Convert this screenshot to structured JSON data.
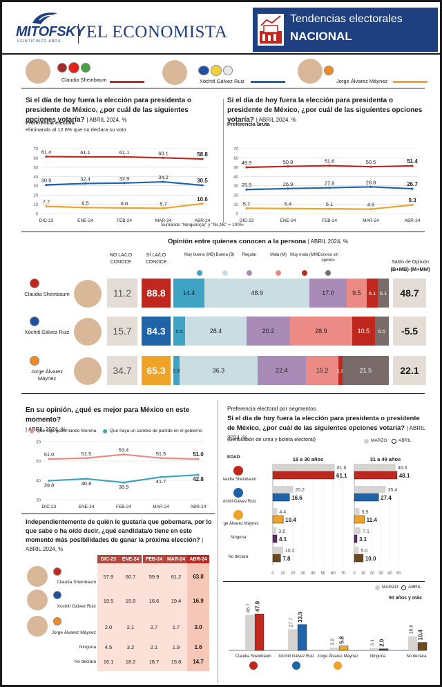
{
  "header": {
    "logo_left": "MITOFSKY",
    "logo_left_sub": "VEINTICINCO AÑOS",
    "logo_right": "EL ECONOMISTA",
    "title1": "Tendencias electorales",
    "title2": "NACIONAL"
  },
  "candidates": [
    {
      "name": "Claudia Sheinbaum",
      "color": "#c0281e"
    },
    {
      "name": "Xóchitl Gálvez Ruiz",
      "color": "#1f63a8"
    },
    {
      "name": "Jorge Álvarez Máynez",
      "color": "#f0a329"
    }
  ],
  "q1": {
    "title": "Si el día de hoy fuera la elección para presidenta o presidente de México, ¿por cuál de las siguientes opciones votaría?",
    "period": "| ABRIL 2024, %"
  },
  "chart_data": [
    {
      "type": "line",
      "title": "Preferencia efectiva",
      "subtitle": "eliminando al 12.6% que no declara su voto",
      "categories": [
        "DIC-23",
        "ENE-24",
        "FEB-24",
        "MAR-24",
        "ABR-24"
      ],
      "ylim": [
        0,
        70
      ],
      "yticks": [
        0,
        10,
        20,
        30,
        40,
        50,
        60,
        70
      ],
      "series": [
        {
          "name": "Claudia Sheinbaum",
          "color": "#c0281e",
          "values": [
            61.4,
            61.1,
            61.1,
            60.1,
            58.8
          ]
        },
        {
          "name": "Xóchitl Gálvez Ruiz",
          "color": "#1f63a8",
          "values": [
            30.9,
            32.4,
            32.9,
            34.2,
            30.5
          ]
        },
        {
          "name": "Jorge Álvarez Máynez",
          "color": "#f0a329",
          "values": [
            7.7,
            6.5,
            6.0,
            5.7,
            10.6
          ]
        }
      ],
      "note": "Sumando \"Ninguno(a)\" y \"Ns,Nc\" = 100%"
    },
    {
      "type": "line",
      "title": "Preferencia bruta",
      "categories": [
        "DIC-23",
        "ENE-24",
        "FEB-24",
        "MAR-24",
        "ABR-24"
      ],
      "ylim": [
        0,
        70
      ],
      "yticks": [
        0,
        10,
        20,
        30,
        40,
        50,
        60,
        70
      ],
      "series": [
        {
          "name": "Claudia Sheinbaum",
          "color": "#c0281e",
          "values": [
            49.9,
            50.8,
            51.6,
            50.5,
            51.4
          ]
        },
        {
          "name": "Xóchitl Gálvez Ruiz",
          "color": "#1f63a8",
          "values": [
            25.9,
            26.9,
            27.8,
            28.8,
            26.7
          ]
        },
        {
          "name": "Jorge Álvarez Máynez",
          "color": "#f0a329",
          "values": [
            5.7,
            5.4,
            5.1,
            4.8,
            9.3
          ]
        }
      ]
    },
    {
      "type": "bar",
      "title": "Opinión entre quienes conocen a la persona",
      "period": "| ABRIL 2024, %",
      "col_no": "NO LA/LO CONOCE",
      "col_si": "SÍ LA/LO CONOCE",
      "legend": [
        "Muy buena (MB)",
        "Buena (B)",
        "Regular",
        "Mala (M)",
        "Muy mala (MM)",
        "Conoce sin opinión"
      ],
      "legend_colors": [
        "#3fa3c4",
        "#c9dde3",
        "#a98bb8",
        "#ec8a85",
        "#c0281e",
        "#7a6b6b"
      ],
      "saldo_title": "Saldo de Opinión",
      "saldo_sub": "(B+MB)-(M+MM)",
      "rows": [
        {
          "name": "Claudia Sheinbaum",
          "no": "11.2",
          "si": "88.8",
          "si_color": "#c0281e",
          "values": [
            14.4,
            48.9,
            17.0,
            9.5,
            5.1,
            5.1
          ],
          "saldo": "48.7"
        },
        {
          "name": "Xóchitl Gálvez Ruiz",
          "no": "15.7",
          "si": "84.3",
          "si_color": "#1f63a8",
          "values": [
            5.5,
            28.4,
            20.2,
            28.9,
            10.5,
            6.5
          ],
          "saldo": "-5.5"
        },
        {
          "name": "Jorge Álvarez Máynez",
          "no": "34.7",
          "si": "65.3",
          "si_color": "#f0a329",
          "values": [
            2.8,
            36.3,
            22.4,
            15.2,
            1.8,
            21.5
          ],
          "saldo": "22.1"
        }
      ]
    },
    {
      "type": "line",
      "title": "En su opinión, ¿qué es mejor para México en este momento?",
      "period": "| ABRIL 2024, %",
      "categories": [
        "DIC-23",
        "ENE-24",
        "FEB-24",
        "MAR-24",
        "ABR-24"
      ],
      "ylim": [
        30,
        60
      ],
      "yticks": [
        30,
        40,
        50,
        60
      ],
      "series": [
        {
          "name": "Que siga gobernando Morena",
          "color": "#ec8a85",
          "values": [
            51.0,
            51.5,
            53.4,
            51.5,
            51.0
          ]
        },
        {
          "name": "Que haya un cambio de partido en el gobierno",
          "color": "#3fa3c4",
          "values": [
            39.8,
            40.8,
            38.9,
            41.7,
            42.8
          ]
        }
      ]
    },
    {
      "type": "table",
      "title": "Independientemente de quién le gustaría que gobernara, por lo que sabe o ha oído decir, ¿qué candidata/o tiene en este momento más posibilidades de ganar la próxima elección?",
      "period": "| ABRIL 2024, %",
      "columns": [
        "DIC-23",
        "ENE-24",
        "FEB-24",
        "MAR-24",
        "ABR-24"
      ],
      "rows": [
        {
          "label": "Claudia Sheinbaum",
          "values": [
            "57.9",
            "60.7",
            "59.9",
            "61.2",
            "63.8"
          ]
        },
        {
          "label": "Xóchitl Gálvez Ruiz",
          "values": [
            "19.5",
            "15.8",
            "16.6",
            "19.4",
            "16.9"
          ]
        },
        {
          "label": "Jorge Álvarez Máynez",
          "values": [
            "2.0",
            "2.1",
            "2.7",
            "1.7",
            "3.0"
          ]
        },
        {
          "label": "Ninguna",
          "values": [
            "4.5",
            "3.2",
            "2.1",
            "1.9",
            "1.6"
          ]
        },
        {
          "label": "No declara",
          "values": [
            "16.1",
            "18.2",
            "18.7",
            "15.8",
            "14.7"
          ]
        }
      ]
    },
    {
      "type": "bar",
      "title": "Preferencia electoral por segmentos",
      "subtitle": "Si el día de hoy fuera la elección para presidenta o presidente de México, ¿por cuál de las siguientes opciones votaría?",
      "period": "| ABRIL 2024, %,",
      "note": "(Simulación de urna y boleta electoral)",
      "legend": [
        "MARZO",
        "ABRIL"
      ],
      "edad": "EDAD",
      "categories": [
        "Claudia Sheinbaum",
        "Xóchitl Gálvez Ruiz",
        "Jorge Álvarez Máynez",
        "Ninguna",
        "No declara"
      ],
      "colors": [
        "#c0281e",
        "#1f63a8",
        "#f0a329",
        "#5e2a6e",
        "#6b4a1f"
      ],
      "groups": [
        {
          "name": "18 a 30 años",
          "marzo": [
            61.6,
            20.2,
            4.4,
            3.6,
            10.2
          ],
          "abril": [
            61.1,
            16.6,
            10.4,
            4.1,
            7.8
          ]
        },
        {
          "name": "31 a 49 años",
          "marzo": [
            46.6,
            35.4,
            5.9,
            7.1,
            5.0
          ],
          "abril": [
            48.1,
            27.4,
            11.4,
            3.1,
            10.0
          ]
        },
        {
          "name": "50 años y más",
          "marzo": [
            46.7,
            27.7,
            3.9,
            3.1,
            18.6
          ],
          "abril": [
            47.9,
            33.9,
            5.8,
            2.0,
            10.4
          ]
        }
      ],
      "xticks": [
        0,
        10,
        20,
        30,
        40,
        50,
        60,
        70
      ]
    }
  ]
}
